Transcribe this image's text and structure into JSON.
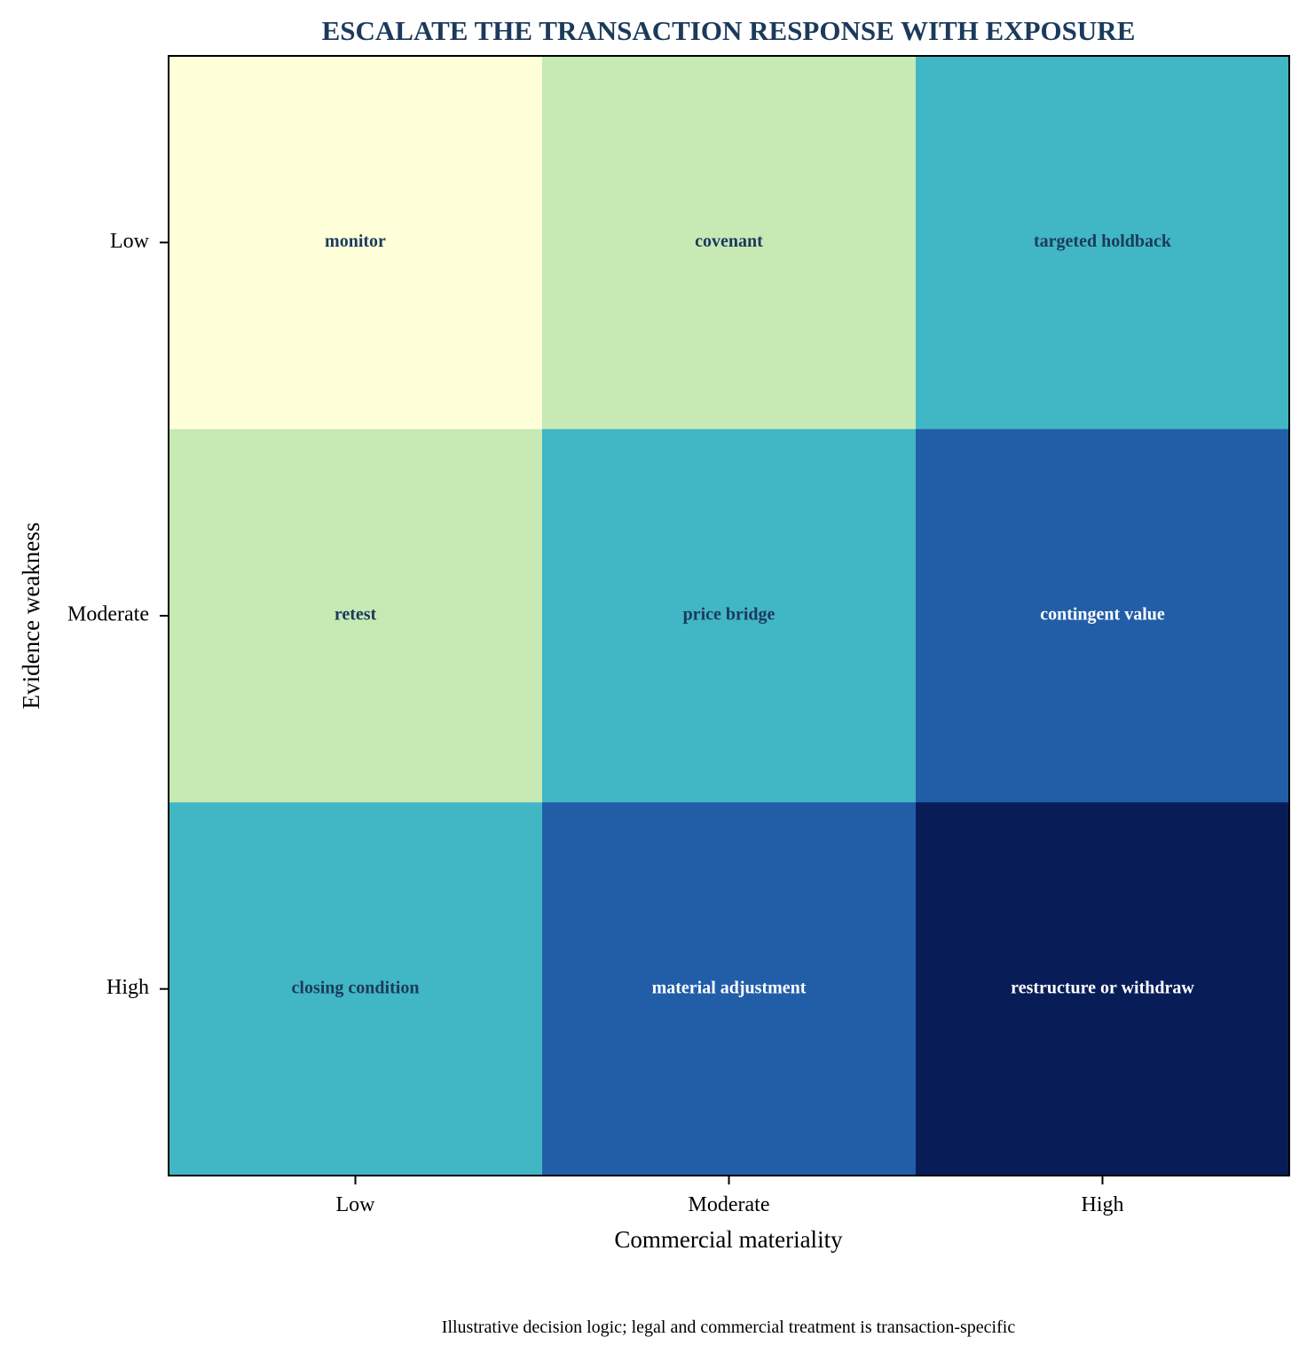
{
  "chart_data": {
    "type": "heatmap",
    "title": "ESCALATE THE TRANSACTION RESPONSE WITH EXPOSURE",
    "xlabel": "Commercial materiality",
    "ylabel": "Evidence weakness",
    "x_categories": [
      "Low",
      "Moderate",
      "High"
    ],
    "y_categories": [
      "Low",
      "Moderate",
      "High"
    ],
    "values": [
      [
        0,
        1,
        2
      ],
      [
        1,
        2,
        3
      ],
      [
        2,
        3,
        4
      ]
    ],
    "cell_labels": [
      [
        "monitor",
        "covenant",
        "targeted holdback"
      ],
      [
        "retest",
        "price bridge",
        "contingent value"
      ],
      [
        "closing condition",
        "material adjustment",
        "restructure or withdraw"
      ]
    ],
    "colormap": [
      "#ffffd9",
      "#c7e9b4",
      "#41b6c4",
      "#225ea8",
      "#081d58"
    ],
    "label_colors": {
      "light_bg": "#1b3a5c",
      "dark_bg": "#ffffff"
    },
    "title_color": "#1b3a5c",
    "grid": false,
    "legend": "none",
    "footnote": "Illustrative decision logic; legal and commercial treatment is transaction-specific"
  }
}
